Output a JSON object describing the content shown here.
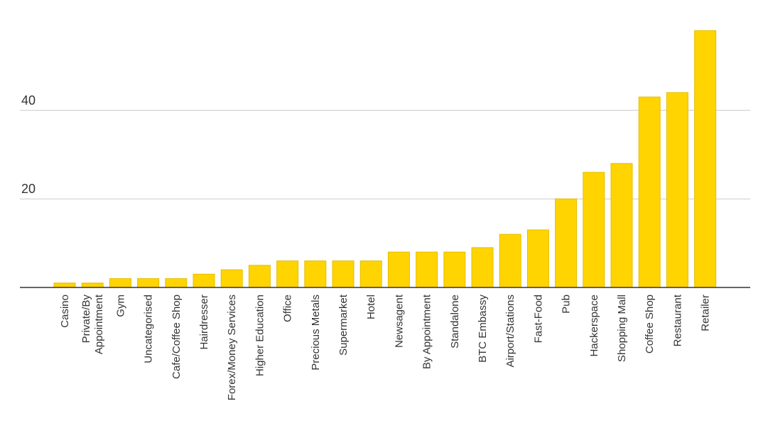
{
  "chart_data": {
    "type": "bar",
    "title": "",
    "xlabel": "",
    "ylabel": "",
    "ylim": [
      0,
      58
    ],
    "yticks": [
      20,
      40
    ],
    "grid": true,
    "bar_color": "#FFD400",
    "bar_edge_color": "#E6BE00",
    "categories": [
      "Casino",
      "Private/By Appointment",
      "Gym",
      "Uncategorised",
      "Cafe/Coffee Shop",
      "Hairdresser",
      "Forex/Money Services",
      "Higher Education",
      "Office",
      "Precious Metals",
      "Supermarket",
      "Hotel",
      "Newsagent",
      "By Appointment",
      "Standalone",
      "BTC Embassy",
      "Airport/Stations",
      "Fast-Food",
      "Pub",
      "Hackerspace",
      "Shopping Mall",
      "Coffee Shop",
      "Restaurant",
      "Retailer"
    ],
    "values": [
      1,
      1,
      2,
      2,
      2,
      3,
      4,
      5,
      6,
      6,
      6,
      6,
      8,
      8,
      8,
      9,
      12,
      13,
      20,
      26,
      28,
      43,
      44,
      58
    ]
  }
}
